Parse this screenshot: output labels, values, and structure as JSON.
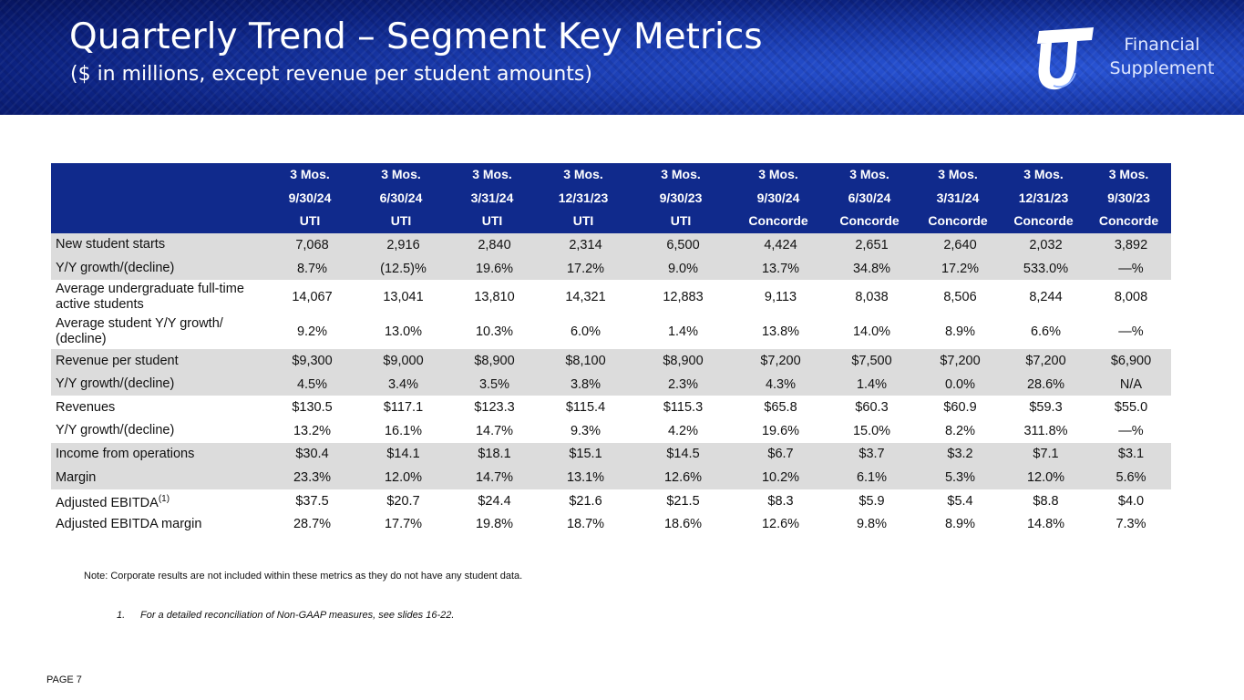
{
  "header": {
    "title": "Quarterly Trend – Segment Key Metrics",
    "subtitle": "($ in millions, except revenue per student amounts)",
    "logo_line1": "Financial",
    "logo_line2": "Supplement",
    "logo_icon": "uti-logo-icon"
  },
  "table": {
    "header_rows": [
      [
        "3 Mos.",
        "3 Mos.",
        "3 Mos.",
        "3 Mos.",
        "3 Mos.",
        "3 Mos.",
        "3 Mos.",
        "3 Mos.",
        "3 Mos.",
        "3 Mos."
      ],
      [
        "9/30/24",
        "6/30/24",
        "3/31/24",
        "12/31/23",
        "9/30/23",
        "9/30/24",
        "6/30/24",
        "3/31/24",
        "12/31/23",
        "9/30/23"
      ],
      [
        "UTI",
        "UTI",
        "UTI",
        "UTI",
        "UTI",
        "Concorde",
        "Concorde",
        "Concorde",
        "Concorde",
        "Concorde"
      ]
    ],
    "rows": [
      {
        "label": "New student starts",
        "values": [
          "7,068",
          "2,916",
          "2,840",
          "2,314",
          "6,500",
          "4,424",
          "2,651",
          "2,640",
          "2,032",
          "3,892"
        ]
      },
      {
        "label": "Y/Y growth/(decline)",
        "values": [
          "8.7%",
          "(12.5)%",
          "19.6%",
          "17.2%",
          "9.0%",
          "13.7%",
          "34.8%",
          "17.2%",
          "533.0%",
          "—%"
        ]
      },
      {
        "label": "Average undergraduate full-time active students",
        "values": [
          "14,067",
          "13,041",
          "13,810",
          "14,321",
          "12,883",
          "9,113",
          "8,038",
          "8,506",
          "8,244",
          "8,008"
        ]
      },
      {
        "label": "Average student Y/Y growth/ (decline)",
        "values": [
          "9.2%",
          "13.0%",
          "10.3%",
          "6.0%",
          "1.4%",
          "13.8%",
          "14.0%",
          "8.9%",
          "6.6%",
          "—%"
        ]
      },
      {
        "label": "Revenue per student",
        "values": [
          "$9,300",
          "$9,000",
          "$8,900",
          "$8,100",
          "$8,900",
          "$7,200",
          "$7,500",
          "$7,200",
          "$7,200",
          "$6,900"
        ]
      },
      {
        "label": "Y/Y growth/(decline)",
        "values": [
          "4.5%",
          "3.4%",
          "3.5%",
          "3.8%",
          "2.3%",
          "4.3%",
          "1.4%",
          "0.0%",
          "28.6%",
          "N/A"
        ]
      },
      {
        "label": "Revenues",
        "values": [
          "$130.5",
          "$117.1",
          "$123.3",
          "$115.4",
          "$115.3",
          "$65.8",
          "$60.3",
          "$60.9",
          "$59.3",
          "$55.0"
        ]
      },
      {
        "label": "Y/Y growth/(decline)",
        "values": [
          "13.2%",
          "16.1%",
          "14.7%",
          "9.3%",
          "4.2%",
          "19.6%",
          "15.0%",
          "8.2%",
          "311.8%",
          "—%"
        ]
      },
      {
        "label": "Income from operations",
        "values": [
          "$30.4",
          "$14.1",
          "$18.1",
          "$15.1",
          "$14.5",
          "$6.7",
          "$3.7",
          "$3.2",
          "$7.1",
          "$3.1"
        ]
      },
      {
        "label": "Margin",
        "values": [
          "23.3%",
          "12.0%",
          "14.7%",
          "13.1%",
          "12.6%",
          "10.2%",
          "6.1%",
          "5.3%",
          "12.0%",
          "5.6%"
        ]
      },
      {
        "label": "Adjusted EBITDA",
        "label_sup": "(1)",
        "values": [
          "$37.5",
          "$20.7",
          "$24.4",
          "$21.6",
          "$21.5",
          "$8.3",
          "$5.9",
          "$5.4",
          "$8.8",
          "$4.0"
        ]
      },
      {
        "label": "Adjusted EBITDA margin",
        "values": [
          "28.7%",
          "17.7%",
          "19.8%",
          "18.7%",
          "18.6%",
          "12.6%",
          "9.8%",
          "8.9%",
          "14.8%",
          "7.3%"
        ]
      }
    ]
  },
  "note": "Note: Corporate results are not included within these metrics as they do not have any student data.",
  "footnote": {
    "number": "1.",
    "text": "For a detailed reconciliation of Non-GAAP measures, see slides 16-22."
  },
  "page_label": "PAGE 7",
  "colors": {
    "banner": "#0c2280",
    "table_header": "#102a8c",
    "row_shade": "#dcdcdc"
  }
}
